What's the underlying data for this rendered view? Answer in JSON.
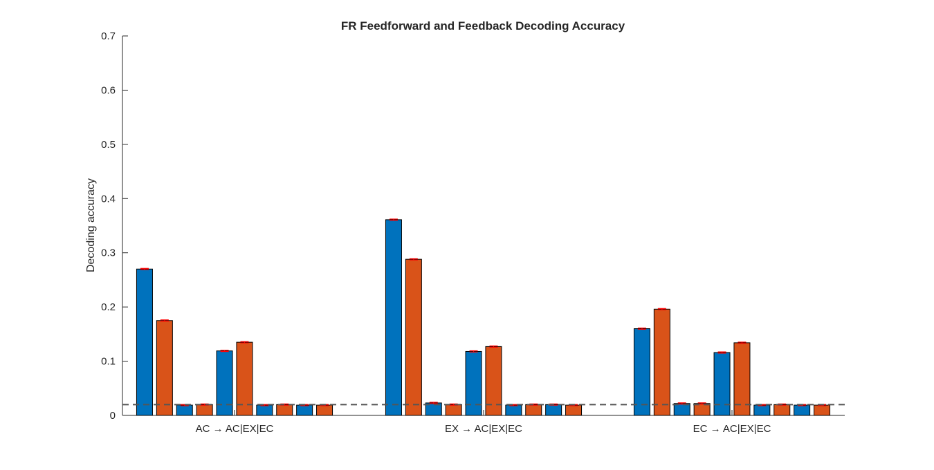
{
  "chart_data": {
    "type": "bar",
    "title": "FR Feedforward and Feedback Decoding Accuracy",
    "xlabel": "",
    "ylabel": "Decoding accuracy",
    "ylim": [
      0,
      0.7
    ],
    "yticks": [
      "0",
      "0.1",
      "0.2",
      "0.3",
      "0.4",
      "0.5",
      "0.6",
      "0.7"
    ],
    "categories": [
      "AC → AC|EX|EC",
      "EX → AC|EX|EC",
      "EC → AC|EX|EC"
    ],
    "bars_per_group": 10,
    "group_values": [
      [
        0.27,
        0.175,
        0.019,
        0.02,
        0.119,
        0.135,
        0.019,
        0.02,
        0.019,
        0.019
      ],
      [
        0.361,
        0.288,
        0.023,
        0.02,
        0.118,
        0.127,
        0.019,
        0.02,
        0.02,
        0.019
      ],
      [
        0.16,
        0.196,
        0.022,
        0.022,
        0.116,
        0.134,
        0.019,
        0.02,
        0.019,
        0.019
      ]
    ],
    "bar_colors": [
      "#0072BD",
      "#D95319"
    ],
    "errorbar_color": "#FF0000",
    "reference_line": {
      "value": 0.02,
      "style": "dashed",
      "color": "#555555"
    },
    "grid": false
  }
}
